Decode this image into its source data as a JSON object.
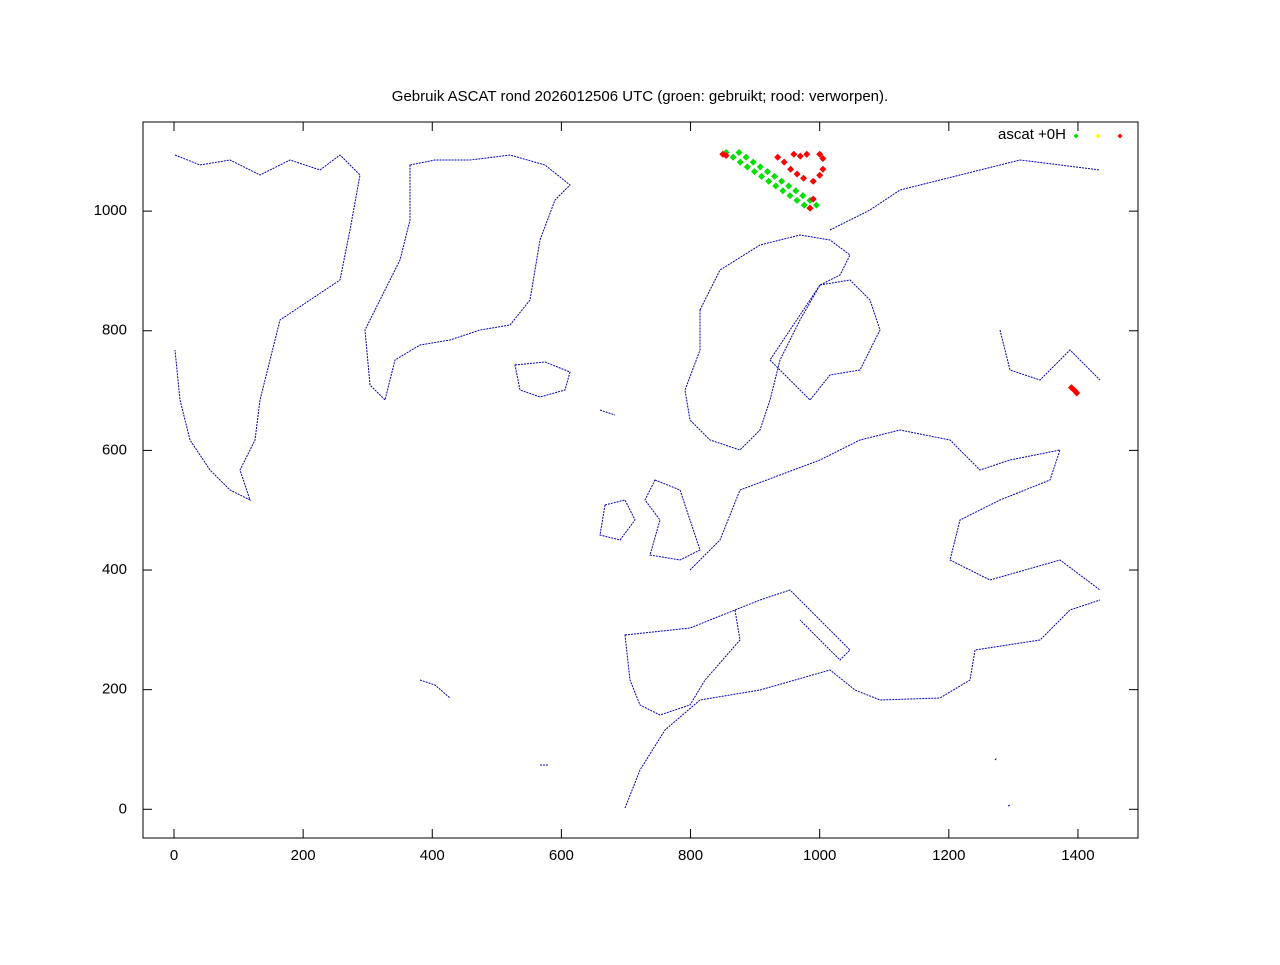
{
  "chart_data": {
    "type": "scatter",
    "title": "Gebruik ASCAT rond 2026012506 UTC (groen: gebruikt; rood: verworpen).",
    "legend_label": "ascat +0H",
    "legend": "top-right",
    "xlim": [
      -48,
      1493
    ],
    "ylim": [
      -48,
      1149
    ],
    "xticks": [
      0,
      200,
      400,
      600,
      800,
      1000,
      1200,
      1400
    ],
    "yticks": [
      0,
      200,
      400,
      600,
      800,
      1000
    ],
    "series": [
      {
        "color": "#00e000",
        "x": [
          855,
          866,
          877,
          888,
          899,
          910,
          921,
          932,
          943,
          954,
          965,
          976,
          985,
          875,
          886,
          897,
          908,
          919,
          930,
          941,
          952,
          963,
          974,
          985,
          995
        ],
        "y": [
          1098,
          1090,
          1082,
          1074,
          1066,
          1058,
          1050,
          1042,
          1034,
          1026,
          1018,
          1010,
          1005,
          1098,
          1090,
          1082,
          1074,
          1066,
          1058,
          1050,
          1042,
          1034,
          1026,
          1018,
          1010
        ]
      },
      {
        "color": "#ffff00",
        "x": [],
        "y": []
      },
      {
        "color": "#ff0000",
        "x": [
          850,
          855,
          935,
          945,
          955,
          960,
          965,
          970,
          975,
          980,
          990,
          1000,
          1005,
          1000,
          1005,
          990,
          985,
          1390,
          1395,
          1398
        ],
        "y": [
          1095,
          1093,
          1090,
          1082,
          1070,
          1095,
          1062,
          1092,
          1055,
          1095,
          1050,
          1095,
          1088,
          1060,
          1070,
          1020,
          1005,
          705,
          700,
          696
        ]
      }
    ]
  }
}
